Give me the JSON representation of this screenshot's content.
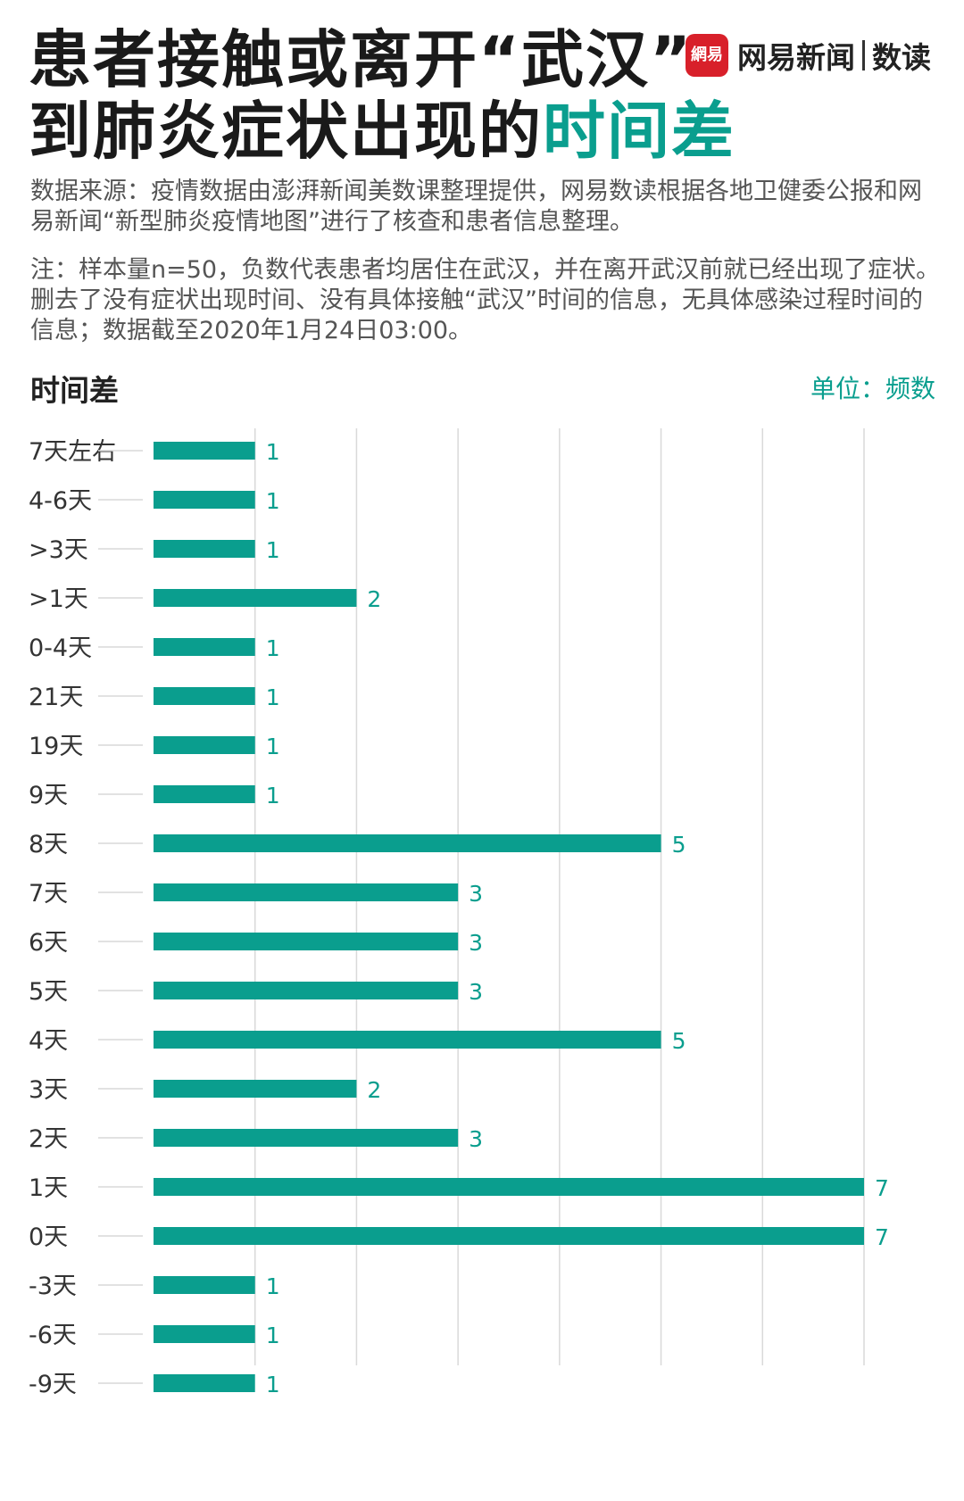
{
  "header": {
    "title_line1": "患者接触或离开“武汉”",
    "title_line2_main": "到肺炎症状出现的",
    "title_line2_highlight": "时间差",
    "brand_logo": "網易",
    "brand_name": "网易新闻",
    "brand_sub": "数读"
  },
  "notes": {
    "source": "数据来源：疫情数据由澎湃新闻美数课整理提供，网易数读根据各地卫健委公报和网易新闻“新型肺炎疫情地图”进行了核查和患者信息整理。",
    "note": "注：样本量n=50，负数代表患者均居住在武汉，并在离开武汉前就已经出现了症状。删去了没有症状出现时间、没有具体接触“武汉”时间的信息，无具体感染过程时间的信息；数据截至2020年1月24日03:00。"
  },
  "colors": {
    "accent": "#0a9e8e",
    "grid": "#d9d9d9"
  },
  "chart_data": {
    "type": "bar",
    "orientation": "horizontal",
    "title": "时间差",
    "unit_label": "单位：频数",
    "categories": [
      "7天左右",
      "4-6天",
      ">3天",
      ">1天",
      "0-4天",
      "21天",
      "19天",
      "9天",
      "8天",
      "7天",
      "6天",
      "5天",
      "4天",
      "3天",
      "2天",
      "1天",
      "0天",
      "-3天",
      "-6天",
      "-9天"
    ],
    "values": [
      1,
      1,
      1,
      2,
      1,
      1,
      1,
      1,
      5,
      3,
      3,
      3,
      5,
      2,
      3,
      7,
      7,
      1,
      1,
      1
    ],
    "xlim": [
      0,
      7
    ],
    "grid": true
  }
}
